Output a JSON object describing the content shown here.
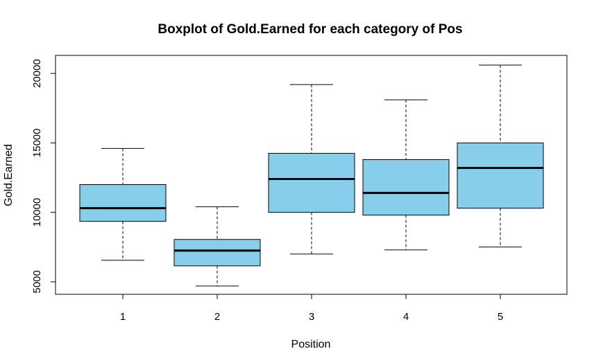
{
  "chart_data": {
    "type": "boxplot",
    "title": "Boxplot of Gold.Earned for each category of Pos",
    "xlabel": "Position",
    "ylabel": "Gold.Earned",
    "categories": [
      "1",
      "2",
      "3",
      "4",
      "5"
    ],
    "yticks": [
      5000,
      10000,
      15000,
      20000
    ],
    "ylim": [
      4100,
      21300
    ],
    "box_color": "#87CEEB",
    "series": [
      {
        "category": "1",
        "whisker_low": 6550,
        "q1": 9350,
        "median": 10300,
        "q3": 12000,
        "whisker_high": 14600
      },
      {
        "category": "2",
        "whisker_low": 4700,
        "q1": 6150,
        "median": 7250,
        "q3": 8050,
        "whisker_high": 10400
      },
      {
        "category": "3",
        "whisker_low": 7000,
        "q1": 10000,
        "median": 12400,
        "q3": 14250,
        "whisker_high": 19200
      },
      {
        "category": "4",
        "whisker_low": 7300,
        "q1": 9800,
        "median": 11400,
        "q3": 13800,
        "whisker_high": 18100
      },
      {
        "category": "5",
        "whisker_low": 7500,
        "q1": 10300,
        "median": 13200,
        "q3": 15000,
        "whisker_high": 20600
      }
    ]
  }
}
